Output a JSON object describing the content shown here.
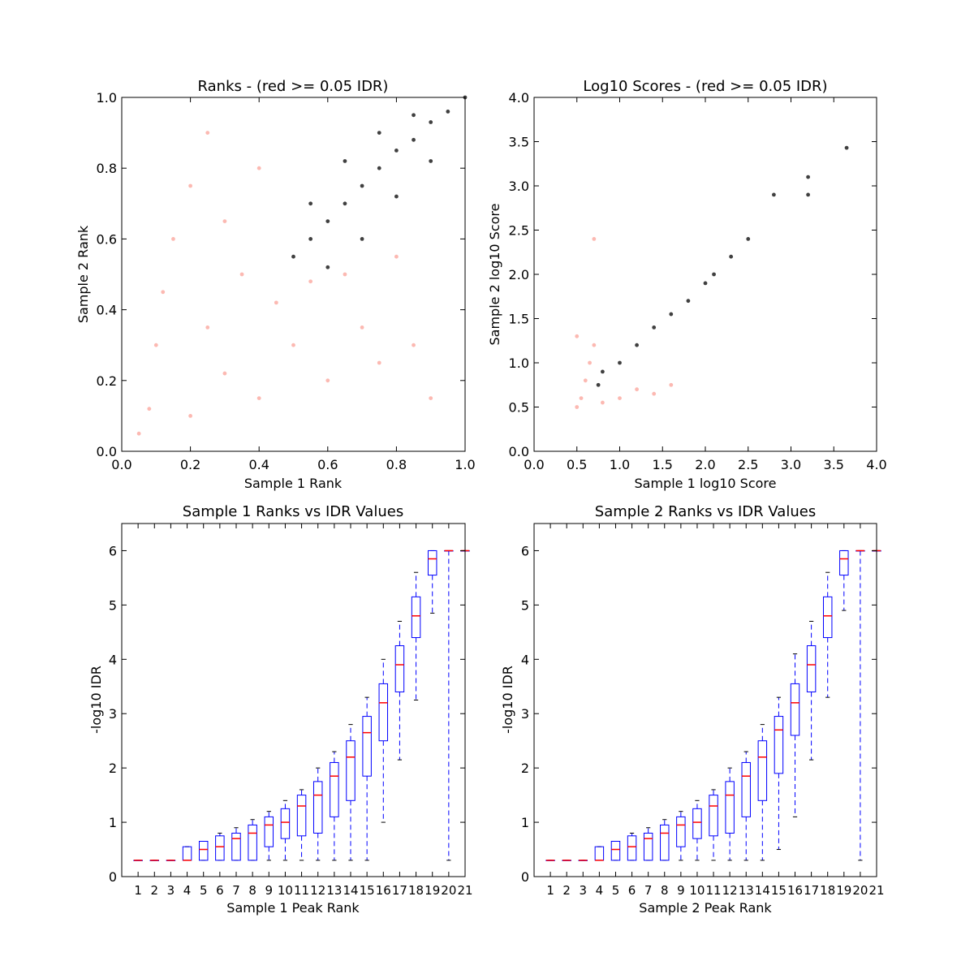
{
  "chart_data": [
    {
      "type": "scatter",
      "title": "Ranks - (red >= 0.05 IDR)",
      "xlabel": "Sample 1 Rank",
      "ylabel": "Sample 2 Rank",
      "xlim": [
        0.0,
        1.0
      ],
      "ylim": [
        0.0,
        1.0
      ],
      "xticks": [
        "0.0",
        "0.2",
        "0.4",
        "0.6",
        "0.8",
        "1.0"
      ],
      "yticks": [
        "0.0",
        "0.2",
        "0.4",
        "0.6",
        "0.8",
        "1.0"
      ],
      "grid": false,
      "series": [
        {
          "color": "#fa8072",
          "role": "peaks with IDR >= 0.05",
          "points": [
            [
              0.05,
              0.05
            ],
            [
              0.08,
              0.12
            ],
            [
              0.1,
              0.3
            ],
            [
              0.12,
              0.45
            ],
            [
              0.2,
              0.1
            ],
            [
              0.25,
              0.35
            ],
            [
              0.3,
              0.22
            ],
            [
              0.35,
              0.5
            ],
            [
              0.4,
              0.15
            ],
            [
              0.45,
              0.42
            ],
            [
              0.5,
              0.3
            ],
            [
              0.55,
              0.48
            ],
            [
              0.6,
              0.2
            ],
            [
              0.65,
              0.5
            ],
            [
              0.7,
              0.35
            ],
            [
              0.75,
              0.25
            ],
            [
              0.8,
              0.55
            ],
            [
              0.85,
              0.3
            ],
            [
              0.9,
              0.15
            ],
            [
              0.15,
              0.6
            ],
            [
              0.2,
              0.75
            ],
            [
              0.25,
              0.9
            ],
            [
              0.3,
              0.65
            ],
            [
              0.4,
              0.8
            ]
          ]
        },
        {
          "color": "#000000",
          "role": "peaks with IDR < 0.05",
          "points": [
            [
              0.5,
              0.55
            ],
            [
              0.55,
              0.6
            ],
            [
              0.6,
              0.65
            ],
            [
              0.65,
              0.7
            ],
            [
              0.7,
              0.75
            ],
            [
              0.75,
              0.8
            ],
            [
              0.8,
              0.85
            ],
            [
              0.85,
              0.88
            ],
            [
              0.9,
              0.93
            ],
            [
              0.95,
              0.96
            ],
            [
              1.0,
              1.0
            ],
            [
              0.6,
              0.52
            ],
            [
              0.7,
              0.6
            ],
            [
              0.8,
              0.72
            ],
            [
              0.9,
              0.82
            ],
            [
              0.55,
              0.7
            ],
            [
              0.65,
              0.82
            ],
            [
              0.75,
              0.9
            ],
            [
              0.85,
              0.95
            ]
          ]
        }
      ]
    },
    {
      "type": "scatter",
      "title": "Log10 Scores - (red >= 0.05 IDR)",
      "xlabel": "Sample 1 log10 Score",
      "ylabel": "Sample 2 log10 Score",
      "xlim": [
        0.0,
        4.0
      ],
      "ylim": [
        0.0,
        4.0
      ],
      "xticks": [
        "0.0",
        "0.5",
        "1.0",
        "1.5",
        "2.0",
        "2.5",
        "3.0",
        "3.5",
        "4.0"
      ],
      "yticks": [
        "0.0",
        "0.5",
        "1.0",
        "1.5",
        "2.0",
        "2.5",
        "3.0",
        "3.5",
        "4.0"
      ],
      "grid": false,
      "series": [
        {
          "color": "#fa8072",
          "role": "peaks with IDR >= 0.05",
          "points": [
            [
              0.5,
              0.5
            ],
            [
              0.55,
              0.6
            ],
            [
              0.6,
              0.8
            ],
            [
              0.65,
              1.0
            ],
            [
              0.7,
              1.2
            ],
            [
              0.8,
              0.55
            ],
            [
              1.0,
              0.6
            ],
            [
              1.2,
              0.7
            ],
            [
              1.4,
              0.65
            ],
            [
              1.6,
              0.75
            ],
            [
              0.5,
              1.3
            ],
            [
              0.7,
              2.4
            ]
          ]
        },
        {
          "color": "#000000",
          "role": "peaks with IDR < 0.05",
          "points": [
            [
              0.75,
              0.75
            ],
            [
              0.8,
              0.9
            ],
            [
              1.0,
              1.0
            ],
            [
              1.2,
              1.2
            ],
            [
              1.4,
              1.4
            ],
            [
              1.6,
              1.55
            ],
            [
              1.8,
              1.7
            ],
            [
              2.0,
              1.9
            ],
            [
              2.1,
              2.0
            ],
            [
              2.3,
              2.2
            ],
            [
              2.5,
              2.4
            ],
            [
              2.8,
              2.9
            ],
            [
              3.2,
              3.1
            ],
            [
              3.2,
              2.9
            ],
            [
              3.65,
              3.43
            ]
          ]
        }
      ]
    },
    {
      "type": "box",
      "title": "Sample 1 Ranks vs IDR Values",
      "xlabel": "Sample 1 Peak Rank",
      "ylabel": "-log10 IDR",
      "xlim": [
        0,
        21
      ],
      "ylim": [
        0,
        6.5
      ],
      "categories": [
        "1",
        "2",
        "3",
        "4",
        "5",
        "6",
        "7",
        "8",
        "9",
        "10",
        "11",
        "12",
        "13",
        "14",
        "15",
        "16",
        "17",
        "18",
        "19",
        "20",
        "21"
      ],
      "yticks": [
        "0",
        "1",
        "2",
        "3",
        "4",
        "5",
        "6"
      ],
      "boxes": [
        {
          "q1": 0.3,
          "median": 0.3,
          "q3": 0.3,
          "whisker_low": 0.3,
          "whisker_high": 0.3
        },
        {
          "q1": 0.3,
          "median": 0.3,
          "q3": 0.3,
          "whisker_low": 0.3,
          "whisker_high": 0.3
        },
        {
          "q1": 0.3,
          "median": 0.3,
          "q3": 0.3,
          "whisker_low": 0.3,
          "whisker_high": 0.3
        },
        {
          "q1": 0.3,
          "median": 0.3,
          "q3": 0.55,
          "whisker_low": 0.3,
          "whisker_high": 0.55
        },
        {
          "q1": 0.3,
          "median": 0.5,
          "q3": 0.65,
          "whisker_low": 0.3,
          "whisker_high": 0.65
        },
        {
          "q1": 0.3,
          "median": 0.55,
          "q3": 0.75,
          "whisker_low": 0.3,
          "whisker_high": 0.8
        },
        {
          "q1": 0.3,
          "median": 0.7,
          "q3": 0.8,
          "whisker_low": 0.3,
          "whisker_high": 0.9
        },
        {
          "q1": 0.3,
          "median": 0.8,
          "q3": 0.95,
          "whisker_low": 0.3,
          "whisker_high": 1.05
        },
        {
          "q1": 0.55,
          "median": 0.95,
          "q3": 1.1,
          "whisker_low": 0.3,
          "whisker_high": 1.2
        },
        {
          "q1": 0.7,
          "median": 1.0,
          "q3": 1.25,
          "whisker_low": 0.3,
          "whisker_high": 1.4
        },
        {
          "q1": 0.75,
          "median": 1.3,
          "q3": 1.5,
          "whisker_low": 0.3,
          "whisker_high": 1.6
        },
        {
          "q1": 0.8,
          "median": 1.5,
          "q3": 1.75,
          "whisker_low": 0.3,
          "whisker_high": 2.0
        },
        {
          "q1": 1.1,
          "median": 1.85,
          "q3": 2.1,
          "whisker_low": 0.3,
          "whisker_high": 2.3
        },
        {
          "q1": 1.4,
          "median": 2.2,
          "q3": 2.5,
          "whisker_low": 0.3,
          "whisker_high": 2.8
        },
        {
          "q1": 1.85,
          "median": 2.65,
          "q3": 2.95,
          "whisker_low": 0.3,
          "whisker_high": 3.3
        },
        {
          "q1": 2.5,
          "median": 3.2,
          "q3": 3.55,
          "whisker_low": 1.0,
          "whisker_high": 4.0
        },
        {
          "q1": 3.4,
          "median": 3.9,
          "q3": 4.25,
          "whisker_low": 2.15,
          "whisker_high": 4.7
        },
        {
          "q1": 4.4,
          "median": 4.8,
          "q3": 5.15,
          "whisker_low": 3.25,
          "whisker_high": 5.6
        },
        {
          "q1": 5.55,
          "median": 5.85,
          "q3": 6.0,
          "whisker_low": 4.85,
          "whisker_high": 6.0
        },
        {
          "q1": 6.0,
          "median": 6.0,
          "q3": 6.0,
          "whisker_low": 0.3,
          "whisker_high": 6.0
        },
        {
          "q1": 6.0,
          "median": 6.0,
          "q3": 6.0,
          "whisker_low": 6.0,
          "whisker_high": 6.0
        }
      ]
    },
    {
      "type": "box",
      "title": "Sample 2 Ranks vs IDR Values",
      "xlabel": "Sample 2 Peak Rank",
      "ylabel": "-log10 IDR",
      "xlim": [
        0,
        21
      ],
      "ylim": [
        0,
        6.5
      ],
      "categories": [
        "1",
        "2",
        "3",
        "4",
        "5",
        "6",
        "7",
        "8",
        "9",
        "10",
        "11",
        "12",
        "13",
        "14",
        "15",
        "16",
        "17",
        "18",
        "19",
        "20",
        "21"
      ],
      "yticks": [
        "0",
        "1",
        "2",
        "3",
        "4",
        "5",
        "6"
      ],
      "boxes": [
        {
          "q1": 0.3,
          "median": 0.3,
          "q3": 0.3,
          "whisker_low": 0.3,
          "whisker_high": 0.3
        },
        {
          "q1": 0.3,
          "median": 0.3,
          "q3": 0.3,
          "whisker_low": 0.3,
          "whisker_high": 0.3
        },
        {
          "q1": 0.3,
          "median": 0.3,
          "q3": 0.3,
          "whisker_low": 0.3,
          "whisker_high": 0.3
        },
        {
          "q1": 0.3,
          "median": 0.3,
          "q3": 0.55,
          "whisker_low": 0.3,
          "whisker_high": 0.55
        },
        {
          "q1": 0.3,
          "median": 0.5,
          "q3": 0.65,
          "whisker_low": 0.3,
          "whisker_high": 0.65
        },
        {
          "q1": 0.3,
          "median": 0.55,
          "q3": 0.75,
          "whisker_low": 0.3,
          "whisker_high": 0.8
        },
        {
          "q1": 0.3,
          "median": 0.7,
          "q3": 0.8,
          "whisker_low": 0.3,
          "whisker_high": 0.9
        },
        {
          "q1": 0.3,
          "median": 0.8,
          "q3": 0.95,
          "whisker_low": 0.3,
          "whisker_high": 1.05
        },
        {
          "q1": 0.55,
          "median": 0.95,
          "q3": 1.1,
          "whisker_low": 0.3,
          "whisker_high": 1.2
        },
        {
          "q1": 0.7,
          "median": 1.0,
          "q3": 1.25,
          "whisker_low": 0.3,
          "whisker_high": 1.4
        },
        {
          "q1": 0.75,
          "median": 1.3,
          "q3": 1.5,
          "whisker_low": 0.3,
          "whisker_high": 1.6
        },
        {
          "q1": 0.8,
          "median": 1.5,
          "q3": 1.75,
          "whisker_low": 0.3,
          "whisker_high": 2.0
        },
        {
          "q1": 1.1,
          "median": 1.85,
          "q3": 2.1,
          "whisker_low": 0.3,
          "whisker_high": 2.3
        },
        {
          "q1": 1.4,
          "median": 2.2,
          "q3": 2.5,
          "whisker_low": 0.3,
          "whisker_high": 2.8
        },
        {
          "q1": 1.9,
          "median": 2.7,
          "q3": 2.95,
          "whisker_low": 0.5,
          "whisker_high": 3.3
        },
        {
          "q1": 2.6,
          "median": 3.2,
          "q3": 3.55,
          "whisker_low": 1.1,
          "whisker_high": 4.1
        },
        {
          "q1": 3.4,
          "median": 3.9,
          "q3": 4.25,
          "whisker_low": 2.15,
          "whisker_high": 4.7
        },
        {
          "q1": 4.4,
          "median": 4.8,
          "q3": 5.15,
          "whisker_low": 3.3,
          "whisker_high": 5.6
        },
        {
          "q1": 5.55,
          "median": 5.85,
          "q3": 6.0,
          "whisker_low": 4.9,
          "whisker_high": 6.0
        },
        {
          "q1": 6.0,
          "median": 6.0,
          "q3": 6.0,
          "whisker_low": 0.3,
          "whisker_high": 6.0
        },
        {
          "q1": 6.0,
          "median": 6.0,
          "q3": 6.0,
          "whisker_low": 6.0,
          "whisker_high": 6.0
        }
      ]
    }
  ]
}
